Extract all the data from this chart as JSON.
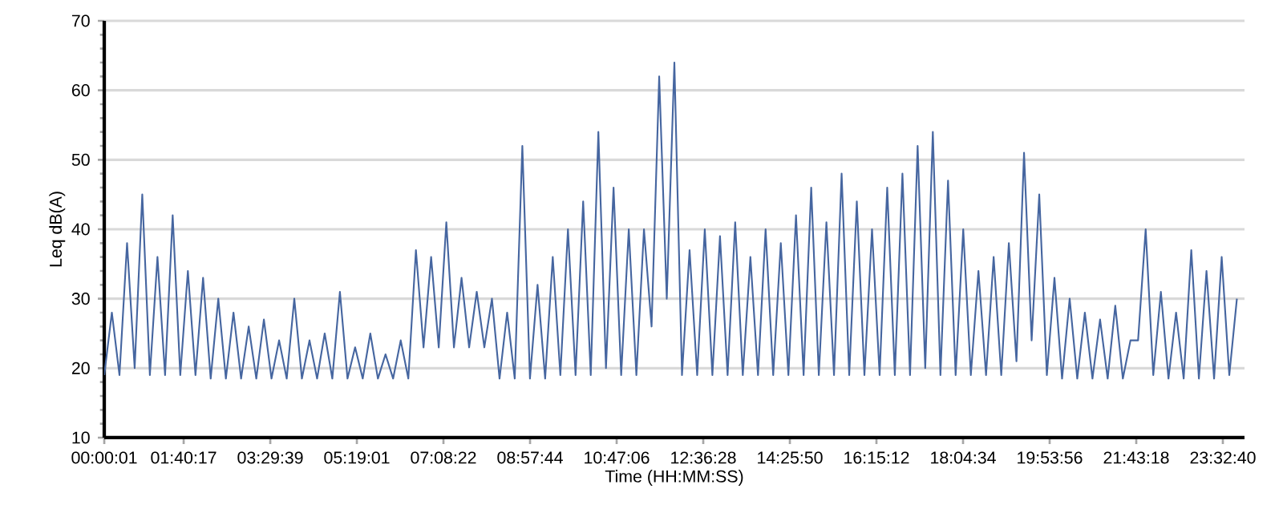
{
  "chart_data": {
    "type": "line",
    "xlabel": "Time (HH:MM:SS)",
    "ylabel": "Leq dB(A)",
    "x": [
      0.0,
      0.16,
      0.32,
      0.48,
      0.64,
      0.8,
      0.96,
      1.12,
      1.28,
      1.44,
      1.6,
      1.76,
      1.92,
      2.08,
      2.24,
      2.4,
      2.56,
      2.72,
      2.88,
      3.04,
      3.2,
      3.36,
      3.52,
      3.68,
      3.84,
      4.0,
      4.16,
      4.32,
      4.48,
      4.64,
      4.8,
      4.96,
      5.12,
      5.28,
      5.44,
      5.6,
      5.76,
      5.92,
      6.08,
      6.24,
      6.4,
      6.56,
      6.72,
      6.88,
      7.04,
      7.2,
      7.36,
      7.52,
      7.68,
      7.84,
      8.0,
      8.16,
      8.32,
      8.48,
      8.64,
      8.8,
      8.96,
      9.12,
      9.28,
      9.44,
      9.6,
      9.76,
      9.92,
      10.08,
      10.24,
      10.4,
      10.56,
      10.72,
      10.88,
      11.04,
      11.2,
      11.36,
      11.52,
      11.68,
      11.84,
      12.0,
      12.16,
      12.32,
      12.48,
      12.64,
      12.8,
      12.96,
      13.12,
      13.28,
      13.44,
      13.6,
      13.76,
      13.92,
      14.08,
      14.24,
      14.4,
      14.56,
      14.72,
      14.88,
      15.04,
      15.2,
      15.36,
      15.52,
      15.68,
      15.84,
      16.0,
      16.16,
      16.32,
      16.48,
      16.64,
      16.8,
      16.96,
      17.12,
      17.28,
      17.44,
      17.6,
      17.76,
      17.92,
      18.08,
      18.24,
      18.4,
      18.56,
      18.72,
      18.88,
      19.04,
      19.2,
      19.36,
      19.52,
      19.68,
      19.84,
      20.0,
      20.16,
      20.32,
      20.48,
      20.64,
      20.8,
      20.96,
      21.12,
      21.28,
      21.44,
      21.6,
      21.76,
      21.92,
      22.08,
      22.24,
      22.4,
      22.56,
      22.72,
      22.88,
      23.04,
      23.2,
      23.36,
      23.52,
      23.68,
      23.84
    ],
    "series": [
      {
        "color": "#4666a0",
        "values": [
          19,
          28,
          19,
          38,
          20,
          45,
          19,
          36,
          19,
          42,
          19,
          34,
          19,
          33,
          18.5,
          30,
          18.5,
          28,
          18.5,
          26,
          18.5,
          27,
          18.5,
          24,
          18.5,
          30,
          18.5,
          24,
          18.5,
          25,
          18.5,
          31,
          18.5,
          23,
          18.5,
          25,
          18.5,
          22,
          18.5,
          24,
          18.5,
          37,
          23,
          36,
          23,
          41,
          23,
          33,
          23,
          31,
          23,
          30,
          18.5,
          28,
          18.5,
          52,
          18.5,
          32,
          18.5,
          36,
          19,
          40,
          19,
          44,
          19,
          54,
          20,
          46,
          19,
          40,
          19,
          40,
          26,
          62,
          30,
          64,
          19,
          37,
          19,
          40,
          19,
          39,
          19,
          41,
          19,
          36,
          19,
          40,
          19,
          38,
          19,
          42,
          19,
          46,
          19,
          41,
          19,
          48,
          19,
          44,
          19,
          40,
          19,
          46,
          19,
          48,
          19,
          52,
          20,
          54,
          19,
          47,
          19,
          40,
          19,
          34,
          19,
          36,
          19,
          38,
          21,
          51,
          24,
          45,
          19,
          33,
          18.5,
          30,
          18.5,
          28,
          18.5,
          27,
          18.5,
          29,
          18.5,
          24,
          24,
          40,
          19,
          31,
          18.5,
          28,
          18.5,
          37,
          18.5,
          34,
          18.5,
          36,
          19,
          30
        ]
      }
    ],
    "xlim": [
      0,
      24
    ],
    "xticks": [
      {
        "value": 0.0003,
        "label": "00:00:01"
      },
      {
        "value": 1.6714,
        "label": "01:40:17"
      },
      {
        "value": 3.4942,
        "label": "03:29:39"
      },
      {
        "value": 5.3169,
        "label": "05:19:01"
      },
      {
        "value": 7.1394,
        "label": "07:08:22"
      },
      {
        "value": 8.9622,
        "label": "08:57:44"
      },
      {
        "value": 10.785,
        "label": "10:47:06"
      },
      {
        "value": 12.6078,
        "label": "12:36:28"
      },
      {
        "value": 14.4306,
        "label": "14:25:50"
      },
      {
        "value": 16.2533,
        "label": "16:15:12"
      },
      {
        "value": 18.0761,
        "label": "18:04:34"
      },
      {
        "value": 19.8989,
        "label": "19:53:56"
      },
      {
        "value": 21.7217,
        "label": "21:43:18"
      },
      {
        "value": 23.5444,
        "label": "23:32:40"
      }
    ],
    "ylim": [
      10,
      70
    ],
    "yticks": [
      10,
      20,
      30,
      40,
      50,
      60,
      70
    ],
    "grid": "y",
    "marker": "none",
    "line_style": "solid"
  }
}
